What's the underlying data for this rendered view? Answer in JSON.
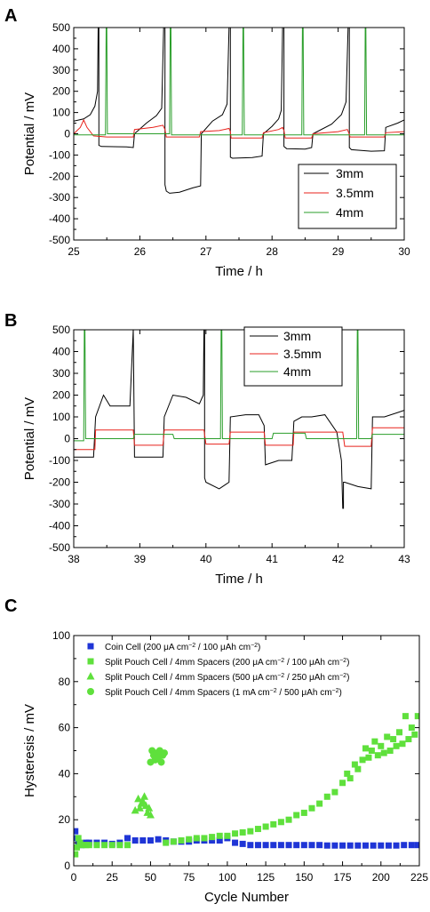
{
  "chart_data": [
    {
      "panel_label": "A",
      "type": "line",
      "xlabel": "Time / h",
      "ylabel": "Potential / mV",
      "xlim": [
        25,
        30
      ],
      "ylim": [
        -500,
        500
      ],
      "x_ticks": [
        "25",
        "26",
        "27",
        "28",
        "29",
        "30"
      ],
      "y_ticks": [
        "500",
        "400",
        "300",
        "200",
        "100",
        "0",
        "-100",
        "-200",
        "-300",
        "-400",
        "-500"
      ],
      "legend_position": "lower-right",
      "series": [
        {
          "name": "3mm",
          "color": "#000000",
          "x": [
            25.0,
            25.15,
            25.25,
            25.32,
            25.36,
            25.37,
            25.38,
            25.38,
            25.42,
            25.8,
            25.9,
            25.92,
            26.1,
            26.25,
            26.33,
            26.36,
            26.37,
            26.38,
            26.38,
            26.4,
            26.45,
            26.6,
            26.8,
            26.92,
            26.93,
            27.1,
            27.25,
            27.32,
            27.35,
            27.36,
            27.37,
            27.37,
            27.4,
            27.7,
            27.85,
            27.87,
            28.0,
            28.1,
            28.14,
            28.16,
            28.17,
            28.18,
            28.18,
            28.22,
            28.5,
            28.6,
            28.62,
            28.9,
            29.05,
            29.12,
            29.15,
            29.16,
            29.17,
            29.17,
            29.2,
            29.5,
            29.7,
            29.72,
            29.9,
            30.0
          ],
          "y": [
            60,
            70,
            90,
            130,
            200,
            500,
            500,
            -55,
            -60,
            -62,
            -65,
            0,
            50,
            85,
            120,
            500,
            500,
            500,
            -240,
            -270,
            -280,
            -275,
            -255,
            -245,
            0,
            60,
            90,
            140,
            500,
            500,
            500,
            -110,
            -115,
            -112,
            -105,
            0,
            35,
            70,
            110,
            500,
            500,
            500,
            -60,
            -70,
            -72,
            -65,
            0,
            45,
            90,
            150,
            500,
            500,
            500,
            -65,
            -75,
            -82,
            -80,
            30,
            50,
            65
          ]
        },
        {
          "name": "3.5mm",
          "color": "#e8231c",
          "x": [
            25.0,
            25.1,
            25.15,
            25.2,
            25.3,
            25.5,
            25.9,
            25.92,
            26.2,
            26.35,
            26.38,
            26.4,
            26.9,
            26.92,
            27.2,
            27.35,
            27.37,
            27.38,
            27.85,
            27.87,
            28.1,
            28.16,
            28.18,
            28.2,
            28.6,
            28.62,
            29.0,
            29.14,
            29.16,
            29.18,
            29.7,
            29.72,
            30.0
          ],
          "y": [
            0,
            30,
            65,
            30,
            -10,
            -15,
            -15,
            20,
            30,
            40,
            20,
            -15,
            -15,
            10,
            15,
            25,
            10,
            -20,
            -20,
            5,
            20,
            30,
            15,
            -20,
            -20,
            0,
            10,
            20,
            5,
            -15,
            -15,
            5,
            10
          ]
        },
        {
          "name": "4mm",
          "color": "#2a9e2a",
          "x": [
            25.0,
            25.48,
            25.49,
            25.5,
            25.51,
            26.3,
            26.45,
            26.46,
            26.47,
            26.48,
            27.0,
            27.55,
            27.56,
            27.57,
            27.58,
            28.4,
            28.45,
            28.46,
            28.47,
            28.48,
            29.0,
            29.4,
            29.41,
            29.42,
            29.43,
            30.0
          ],
          "y": [
            -5,
            -5,
            500,
            500,
            0,
            0,
            0,
            500,
            500,
            -5,
            -5,
            -5,
            500,
            500,
            -5,
            -5,
            -5,
            500,
            500,
            -5,
            -5,
            -5,
            500,
            500,
            -5,
            -5
          ]
        }
      ]
    },
    {
      "panel_label": "B",
      "type": "line",
      "xlabel": "Time / h",
      "ylabel": "Potential / mV",
      "xlim": [
        38,
        43
      ],
      "ylim": [
        -500,
        500
      ],
      "x_ticks": [
        "38",
        "39",
        "40",
        "41",
        "42",
        "43"
      ],
      "y_ticks": [
        "500",
        "400",
        "300",
        "200",
        "100",
        "0",
        "-100",
        "-200",
        "-300",
        "-400",
        "-500"
      ],
      "legend_position": "top-center",
      "series": [
        {
          "name": "3mm",
          "color": "#000000",
          "x": [
            38.0,
            38.3,
            38.33,
            38.45,
            38.55,
            38.7,
            38.85,
            38.9,
            38.9,
            38.92,
            39.2,
            39.35,
            39.37,
            39.5,
            39.7,
            39.9,
            39.96,
            39.97,
            39.98,
            39.98,
            40.0,
            40.2,
            40.35,
            40.37,
            40.6,
            40.8,
            40.88,
            40.9,
            41.1,
            41.3,
            41.33,
            41.45,
            41.6,
            41.8,
            41.98,
            42.05,
            42.07,
            42.08,
            42.08,
            42.1,
            42.3,
            42.5,
            42.52,
            42.7,
            42.9,
            43.0
          ],
          "y": [
            -85,
            -85,
            100,
            200,
            150,
            150,
            150,
            500,
            500,
            -85,
            -85,
            -85,
            100,
            200,
            190,
            160,
            200,
            500,
            500,
            -180,
            -200,
            -230,
            -200,
            100,
            110,
            110,
            60,
            -120,
            -100,
            -100,
            80,
            100,
            100,
            110,
            30,
            -100,
            -320,
            -320,
            -200,
            -200,
            -220,
            -230,
            100,
            100,
            120,
            130
          ]
        },
        {
          "name": "3.5mm",
          "color": "#e8231c",
          "x": [
            38.0,
            38.32,
            38.33,
            38.9,
            38.92,
            39.35,
            39.37,
            39.97,
            40.0,
            40.35,
            40.37,
            40.88,
            40.9,
            41.32,
            41.33,
            42.07,
            42.1,
            42.5,
            42.52,
            43.0
          ],
          "y": [
            -50,
            -50,
            40,
            40,
            -30,
            -30,
            40,
            40,
            -25,
            -25,
            30,
            30,
            -30,
            -30,
            30,
            30,
            -35,
            -35,
            50,
            50
          ]
        },
        {
          "name": "4mm",
          "color": "#2a9e2a",
          "x": [
            38.0,
            38.15,
            38.16,
            38.17,
            38.18,
            38.9,
            38.92,
            39.5,
            39.52,
            40.22,
            40.23,
            40.24,
            40.25,
            41.0,
            41.02,
            41.5,
            41.52,
            42.28,
            42.29,
            42.3,
            42.31,
            42.5,
            42.52,
            43.0
          ],
          "y": [
            -10,
            -10,
            500,
            500,
            0,
            0,
            20,
            20,
            0,
            0,
            500,
            500,
            0,
            0,
            25,
            25,
            0,
            0,
            500,
            500,
            0,
            0,
            20,
            20
          ]
        }
      ]
    },
    {
      "panel_label": "C",
      "type": "scatter",
      "xlabel": "Cycle Number",
      "ylabel": "Hysteresis / mV",
      "xlim": [
        0,
        225
      ],
      "ylim": [
        0,
        100
      ],
      "x_ticks": [
        "0",
        "25",
        "50",
        "75",
        "100",
        "125",
        "150",
        "175",
        "200",
        "225"
      ],
      "y_ticks": [
        "100",
        "80",
        "60",
        "40",
        "20",
        "0"
      ],
      "legend_position": "top-left",
      "series": [
        {
          "name": "Coin Cell (200 μA cm⁻² / 100 μAh cm⁻²)",
          "label_main": "Coin Cell (200 ",
          "label_unit1": "μA cm",
          "label_sup1": "−2",
          "label_mid": " / 100 ",
          "label_unit2": "μAh cm",
          "label_sup2": "−2",
          "label_end": ")",
          "color": "#1f35d6",
          "marker": "square",
          "x": [
            1,
            2,
            3,
            5,
            8,
            10,
            15,
            20,
            25,
            30,
            35,
            40,
            45,
            50,
            55,
            60,
            65,
            70,
            75,
            80,
            85,
            90,
            95,
            100,
            105,
            110,
            115,
            120,
            125,
            130,
            135,
            140,
            145,
            150,
            155,
            160,
            165,
            170,
            175,
            180,
            185,
            190,
            195,
            200,
            205,
            210,
            215,
            220,
            224
          ],
          "y": [
            15,
            12,
            10,
            9,
            10,
            10,
            10,
            10,
            9.5,
            10,
            12,
            11,
            11,
            11,
            11.5,
            11,
            10.5,
            10.5,
            10.5,
            11,
            11,
            11,
            11,
            12,
            10,
            9.5,
            9,
            9,
            9,
            9,
            9,
            9,
            9,
            9,
            9,
            9,
            8.8,
            8.8,
            8.8,
            8.8,
            8.8,
            8.8,
            8.8,
            8.8,
            8.8,
            8.8,
            9,
            9,
            9
          ]
        },
        {
          "name": "Split Pouch Cell / 4mm Spacers (200 μA cm⁻² / 100 μAh cm⁻²)",
          "label_main": "Split Pouch Cell / 4mm Spacers (200 ",
          "label_unit1": "μA cm",
          "label_sup1": "−2",
          "label_mid": " / 100 ",
          "label_unit2": "μAh cm",
          "label_sup2": "−2",
          "label_end": ")",
          "color": "#5fe03c",
          "marker": "square",
          "x": [
            1,
            2,
            3,
            4,
            6,
            8,
            10,
            15,
            20,
            25,
            30,
            35,
            60,
            65,
            70,
            75,
            80,
            85,
            90,
            95,
            100,
            105,
            110,
            115,
            120,
            125,
            130,
            135,
            140,
            145,
            150,
            155,
            160,
            165,
            170,
            175,
            178,
            180,
            183,
            185,
            188,
            190,
            192,
            194,
            196,
            198,
            200,
            202,
            204,
            206,
            208,
            210,
            212,
            214,
            216,
            218,
            220,
            222,
            224
          ],
          "y": [
            5,
            8,
            12,
            10,
            9,
            9,
            9,
            9,
            9,
            9,
            9,
            9,
            10,
            10.5,
            11,
            11.5,
            12,
            12,
            12.5,
            13,
            13,
            14,
            14.5,
            15,
            16,
            17,
            18,
            19,
            20,
            22,
            23,
            25,
            27,
            30,
            32,
            36,
            40,
            38,
            44,
            42,
            46,
            51,
            47,
            50,
            54,
            48,
            52,
            49,
            56,
            50,
            55,
            52,
            58,
            53,
            65,
            55,
            60,
            57,
            65
          ]
        },
        {
          "name": "Split Pouch Cell / 4mm Spacers (500 μA cm⁻² / 250 μAh cm⁻²)",
          "label_main": "Split Pouch Cell / 4mm Spacers (500 ",
          "label_unit1": "μA cm",
          "label_sup1": "−2",
          "label_mid": " / 250 ",
          "label_unit2": "μAh cm",
          "label_sup2": "−2",
          "label_end": ")",
          "color": "#5fe03c",
          "marker": "triangle",
          "x": [
            40,
            42,
            43,
            44,
            45,
            46,
            47,
            48,
            49,
            50
          ],
          "y": [
            24,
            29,
            25,
            27,
            28,
            30,
            26,
            23,
            25,
            22
          ]
        },
        {
          "name": "Split Pouch Cell / 4mm Spacers (1 mA cm⁻² / 500 μAh cm⁻²)",
          "label_main": "Split Pouch Cell / 4mm Spacers (1 ",
          "label_unit1": "mA cm",
          "label_sup1": "−2",
          "label_mid": " / 500 ",
          "label_unit2": "μAh cm",
          "label_sup2": "−2",
          "label_end": ")",
          "color": "#5fe03c",
          "marker": "circle",
          "x": [
            50,
            51,
            52,
            53,
            54,
            55,
            56,
            57,
            58,
            59
          ],
          "y": [
            45,
            50,
            48,
            46,
            49,
            47,
            50,
            45,
            48,
            49
          ]
        }
      ]
    }
  ]
}
